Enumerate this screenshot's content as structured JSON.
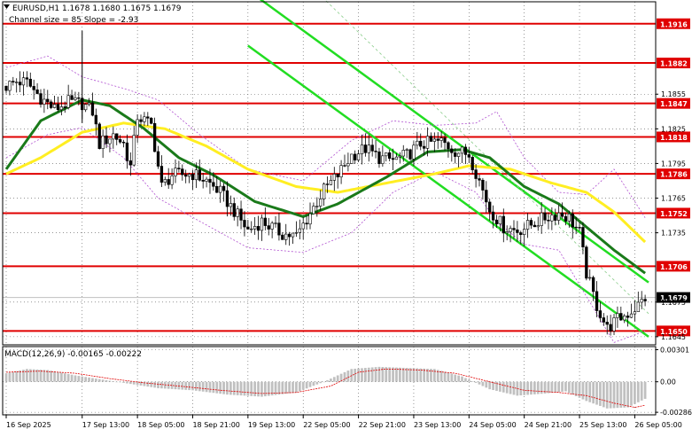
{
  "header": {
    "symbol_line": "EURUSD,H1  1.1678 1.1680 1.1675 1.1679",
    "channel_line": "Channel size = 85 Slope = -2.93"
  },
  "colors": {
    "candle": "#000000",
    "level_line": "#e00000",
    "level_label_bg": "#e00000",
    "current_label_bg": "#000000",
    "current_line": "#c0c0c0",
    "channel_line": "#22dd22",
    "channel_mid": "#88cc88",
    "ma_fast": "#1a7a1a",
    "ma_slow": "#ffee22",
    "envelope": "#b050d0",
    "macd_hist": "#c0c0c0",
    "macd_signal": "#e00000",
    "grid": "#555555"
  },
  "chart_data": [
    {
      "type": "candlestick",
      "title": "EURUSD,H1",
      "price_axis_ticks": [
        1.1855,
        1.1825,
        1.1795,
        1.1765,
        1.1735,
        1.1675,
        1.1645
      ],
      "ylim": [
        1.1638,
        1.1935
      ],
      "horizontal_levels": [
        1.1916,
        1.1882,
        1.1847,
        1.1818,
        1.1786,
        1.1752,
        1.1706,
        1.165
      ],
      "current_price": 1.1679,
      "current_price_label": "1.1679",
      "x_ticks": [
        "16 Sep 2025",
        "17 Sep 13:00",
        "18 Sep 05:00",
        "18 Sep 21:00",
        "19 Sep 13:00",
        "22 Sep 05:00",
        "22 Sep 21:00",
        "23 Sep 13:00",
        "24 Sep 05:00",
        "24 Sep 21:00",
        "25 Sep 13:00",
        "26 Sep 05:00"
      ],
      "x_tick_bar_index": [
        0,
        22,
        38,
        54,
        70,
        86,
        102,
        118,
        134,
        150,
        166,
        182
      ],
      "bar_count": 186,
      "anchors": [
        {
          "bar": 0,
          "price": 1.1862
        },
        {
          "bar": 3,
          "price": 1.1866
        },
        {
          "bar": 6,
          "price": 1.1865
        },
        {
          "bar": 10,
          "price": 1.1852
        },
        {
          "bar": 14,
          "price": 1.1842
        },
        {
          "bar": 18,
          "price": 1.1848
        },
        {
          "bar": 22,
          "price": 1.1847
        },
        {
          "bar": 25,
          "price": 1.184
        },
        {
          "bar": 27,
          "price": 1.1812
        },
        {
          "bar": 31,
          "price": 1.182
        },
        {
          "bar": 34,
          "price": 1.1812
        },
        {
          "bar": 36,
          "price": 1.1792
        },
        {
          "bar": 38,
          "price": 1.1836
        },
        {
          "bar": 42,
          "price": 1.1828
        },
        {
          "bar": 45,
          "price": 1.1775
        },
        {
          "bar": 48,
          "price": 1.1785
        },
        {
          "bar": 54,
          "price": 1.1786
        },
        {
          "bar": 58,
          "price": 1.178
        },
        {
          "bar": 62,
          "price": 1.177
        },
        {
          "bar": 66,
          "price": 1.1754
        },
        {
          "bar": 70,
          "price": 1.1737
        },
        {
          "bar": 74,
          "price": 1.1745
        },
        {
          "bar": 80,
          "price": 1.1734
        },
        {
          "bar": 84,
          "price": 1.1732
        },
        {
          "bar": 88,
          "price": 1.1752
        },
        {
          "bar": 92,
          "price": 1.1772
        },
        {
          "bar": 96,
          "price": 1.1785
        },
        {
          "bar": 100,
          "price": 1.1802
        },
        {
          "bar": 104,
          "price": 1.1808
        },
        {
          "bar": 108,
          "price": 1.18
        },
        {
          "bar": 112,
          "price": 1.1798
        },
        {
          "bar": 116,
          "price": 1.1802
        },
        {
          "bar": 120,
          "price": 1.1812
        },
        {
          "bar": 126,
          "price": 1.1814
        },
        {
          "bar": 130,
          "price": 1.1806
        },
        {
          "bar": 134,
          "price": 1.1803
        },
        {
          "bar": 137,
          "price": 1.178
        },
        {
          "bar": 140,
          "price": 1.1755
        },
        {
          "bar": 144,
          "price": 1.174
        },
        {
          "bar": 148,
          "price": 1.1737
        },
        {
          "bar": 152,
          "price": 1.1742
        },
        {
          "bar": 156,
          "price": 1.1748
        },
        {
          "bar": 160,
          "price": 1.1752
        },
        {
          "bar": 163,
          "price": 1.1748
        },
        {
          "bar": 166,
          "price": 1.1735
        },
        {
          "bar": 168,
          "price": 1.17
        },
        {
          "bar": 171,
          "price": 1.1672
        },
        {
          "bar": 174,
          "price": 1.1652
        },
        {
          "bar": 177,
          "price": 1.166
        },
        {
          "bar": 180,
          "price": 1.1665
        },
        {
          "bar": 183,
          "price": 1.1672
        },
        {
          "bar": 185,
          "price": 1.1679
        }
      ],
      "ma_fast_anchors": [
        {
          "bar": 0,
          "price": 1.179
        },
        {
          "bar": 10,
          "price": 1.1832
        },
        {
          "bar": 22,
          "price": 1.185
        },
        {
          "bar": 30,
          "price": 1.1845
        },
        {
          "bar": 40,
          "price": 1.1825
        },
        {
          "bar": 50,
          "price": 1.18
        },
        {
          "bar": 60,
          "price": 1.1785
        },
        {
          "bar": 72,
          "price": 1.1762
        },
        {
          "bar": 86,
          "price": 1.1749
        },
        {
          "bar": 96,
          "price": 1.176
        },
        {
          "bar": 110,
          "price": 1.1783
        },
        {
          "bar": 122,
          "price": 1.1805
        },
        {
          "bar": 132,
          "price": 1.1807
        },
        {
          "bar": 140,
          "price": 1.18
        },
        {
          "bar": 150,
          "price": 1.1775
        },
        {
          "bar": 160,
          "price": 1.176
        },
        {
          "bar": 168,
          "price": 1.174
        },
        {
          "bar": 176,
          "price": 1.172
        },
        {
          "bar": 185,
          "price": 1.17
        }
      ],
      "ma_slow_anchors": [
        {
          "bar": 0,
          "price": 1.1786
        },
        {
          "bar": 10,
          "price": 1.18
        },
        {
          "bar": 22,
          "price": 1.1822
        },
        {
          "bar": 34,
          "price": 1.183
        },
        {
          "bar": 46,
          "price": 1.1825
        },
        {
          "bar": 58,
          "price": 1.181
        },
        {
          "bar": 70,
          "price": 1.179
        },
        {
          "bar": 84,
          "price": 1.1775
        },
        {
          "bar": 96,
          "price": 1.177
        },
        {
          "bar": 110,
          "price": 1.1778
        },
        {
          "bar": 124,
          "price": 1.1786
        },
        {
          "bar": 134,
          "price": 1.1793
        },
        {
          "bar": 146,
          "price": 1.179
        },
        {
          "bar": 158,
          "price": 1.1778
        },
        {
          "bar": 168,
          "price": 1.177
        },
        {
          "bar": 176,
          "price": 1.1753
        },
        {
          "bar": 185,
          "price": 1.1727
        }
      ],
      "envelope_upper_anchors": [
        {
          "bar": 0,
          "price": 1.1878
        },
        {
          "bar": 12,
          "price": 1.1888
        },
        {
          "bar": 22,
          "price": 1.187
        },
        {
          "bar": 34,
          "price": 1.186
        },
        {
          "bar": 44,
          "price": 1.185
        },
        {
          "bar": 56,
          "price": 1.182
        },
        {
          "bar": 70,
          "price": 1.179
        },
        {
          "bar": 86,
          "price": 1.178
        },
        {
          "bar": 100,
          "price": 1.1815
        },
        {
          "bar": 112,
          "price": 1.1832
        },
        {
          "bar": 124,
          "price": 1.1828
        },
        {
          "bar": 136,
          "price": 1.183
        },
        {
          "bar": 142,
          "price": 1.184
        },
        {
          "bar": 150,
          "price": 1.18
        },
        {
          "bar": 160,
          "price": 1.177
        },
        {
          "bar": 168,
          "price": 1.1768
        },
        {
          "bar": 176,
          "price": 1.179
        },
        {
          "bar": 185,
          "price": 1.1748
        }
      ],
      "envelope_lower_anchors": [
        {
          "bar": 0,
          "price": 1.18
        },
        {
          "bar": 12,
          "price": 1.182
        },
        {
          "bar": 22,
          "price": 1.1826
        },
        {
          "bar": 34,
          "price": 1.18
        },
        {
          "bar": 44,
          "price": 1.1765
        },
        {
          "bar": 56,
          "price": 1.1745
        },
        {
          "bar": 70,
          "price": 1.1722
        },
        {
          "bar": 86,
          "price": 1.1718
        },
        {
          "bar": 100,
          "price": 1.1735
        },
        {
          "bar": 112,
          "price": 1.177
        },
        {
          "bar": 124,
          "price": 1.1788
        },
        {
          "bar": 136,
          "price": 1.177
        },
        {
          "bar": 142,
          "price": 1.1745
        },
        {
          "bar": 150,
          "price": 1.1725
        },
        {
          "bar": 160,
          "price": 1.172
        },
        {
          "bar": 168,
          "price": 1.168
        },
        {
          "bar": 176,
          "price": 1.164
        },
        {
          "bar": 185,
          "price": 1.165
        }
      ],
      "channel": {
        "upper": [
          {
            "bar": 70,
            "price": 1.1945
          },
          {
            "bar": 186,
            "price": 1.1692
          }
        ],
        "lower": [
          {
            "bar": 70,
            "price": 1.1897
          },
          {
            "bar": 186,
            "price": 1.1645
          }
        ],
        "middle": [
          {
            "bar": 86,
            "price": 1.1955
          },
          {
            "bar": 186,
            "price": 1.1665
          }
        ]
      }
    },
    {
      "type": "macd",
      "title": "MACD(12,26,9) -0.00165 -0.00222",
      "axis_ticks": [
        0.00301,
        0.0,
        -0.00286
      ],
      "axis_tick_labels": [
        "0.00301",
        "0.00",
        "-0.00286"
      ],
      "ylim": [
        -0.0031,
        0.0033
      ],
      "hist_anchors": [
        {
          "bar": 0,
          "value": 0.0008
        },
        {
          "bar": 6,
          "value": 0.0012
        },
        {
          "bar": 12,
          "value": 0.0011
        },
        {
          "bar": 20,
          "value": 0.0006
        },
        {
          "bar": 28,
          "value": 0.0002
        },
        {
          "bar": 36,
          "value": -0.0002
        },
        {
          "bar": 44,
          "value": -0.0006
        },
        {
          "bar": 54,
          "value": -0.0008
        },
        {
          "bar": 64,
          "value": -0.0012
        },
        {
          "bar": 74,
          "value": -0.0014
        },
        {
          "bar": 84,
          "value": -0.001
        },
        {
          "bar": 92,
          "value": 0.0
        },
        {
          "bar": 100,
          "value": 0.0012
        },
        {
          "bar": 108,
          "value": 0.0014
        },
        {
          "bar": 116,
          "value": 0.0013
        },
        {
          "bar": 124,
          "value": 0.0012
        },
        {
          "bar": 132,
          "value": 0.0005
        },
        {
          "bar": 140,
          "value": -0.0007
        },
        {
          "bar": 148,
          "value": -0.0013
        },
        {
          "bar": 156,
          "value": -0.0011
        },
        {
          "bar": 162,
          "value": -0.0009
        },
        {
          "bar": 168,
          "value": -0.0018
        },
        {
          "bar": 174,
          "value": -0.0025
        },
        {
          "bar": 180,
          "value": -0.0024
        },
        {
          "bar": 185,
          "value": -0.0016
        }
      ],
      "signal_anchors": [
        {
          "bar": 0,
          "value": 0.0009
        },
        {
          "bar": 10,
          "value": 0.001
        },
        {
          "bar": 20,
          "value": 0.0008
        },
        {
          "bar": 30,
          "value": 0.0003
        },
        {
          "bar": 40,
          "value": -0.0001
        },
        {
          "bar": 50,
          "value": -0.0004
        },
        {
          "bar": 62,
          "value": -0.0008
        },
        {
          "bar": 74,
          "value": -0.0011
        },
        {
          "bar": 84,
          "value": -0.001
        },
        {
          "bar": 94,
          "value": -0.0004
        },
        {
          "bar": 102,
          "value": 0.0009
        },
        {
          "bar": 110,
          "value": 0.0012
        },
        {
          "bar": 120,
          "value": 0.0011
        },
        {
          "bar": 130,
          "value": 0.0008
        },
        {
          "bar": 140,
          "value": 0.0
        },
        {
          "bar": 150,
          "value": -0.0008
        },
        {
          "bar": 160,
          "value": -0.001
        },
        {
          "bar": 168,
          "value": -0.0013
        },
        {
          "bar": 176,
          "value": -0.002
        },
        {
          "bar": 182,
          "value": -0.0024
        },
        {
          "bar": 185,
          "value": -0.0022
        }
      ]
    }
  ]
}
